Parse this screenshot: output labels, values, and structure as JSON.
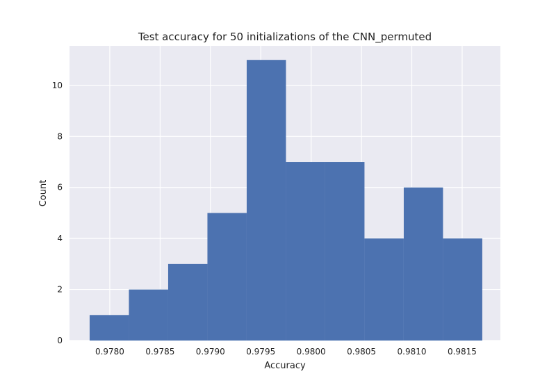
{
  "chart_data": {
    "type": "bar",
    "title": "Test accuracy for 50 initializations of the CNN_permuted",
    "xlabel": "Accuracy",
    "ylabel": "Count",
    "bin_edges": [
      0.9778,
      0.97819,
      0.97858,
      0.97897,
      0.97936,
      0.97975,
      0.98014,
      0.98053,
      0.98092,
      0.98131,
      0.9817
    ],
    "values": [
      1,
      2,
      3,
      5,
      11,
      7,
      7,
      4,
      6,
      4
    ],
    "xlim": [
      0.9776,
      0.98188
    ],
    "ylim": [
      0,
      11.55
    ],
    "xticks": [
      0.978,
      0.9785,
      0.979,
      0.9795,
      0.98,
      0.9805,
      0.981,
      0.9815
    ],
    "xtick_labels": [
      "0.9780",
      "0.9785",
      "0.9790",
      "0.9795",
      "0.9800",
      "0.9805",
      "0.9810",
      "0.9815"
    ],
    "yticks": [
      0,
      2,
      4,
      6,
      8,
      10
    ],
    "ytick_labels": [
      "0",
      "2",
      "4",
      "6",
      "8",
      "10"
    ],
    "grid": true,
    "bar_color": "#4c72b0",
    "plot_background": "#eaeaf2",
    "grid_color": "#ffffff"
  }
}
